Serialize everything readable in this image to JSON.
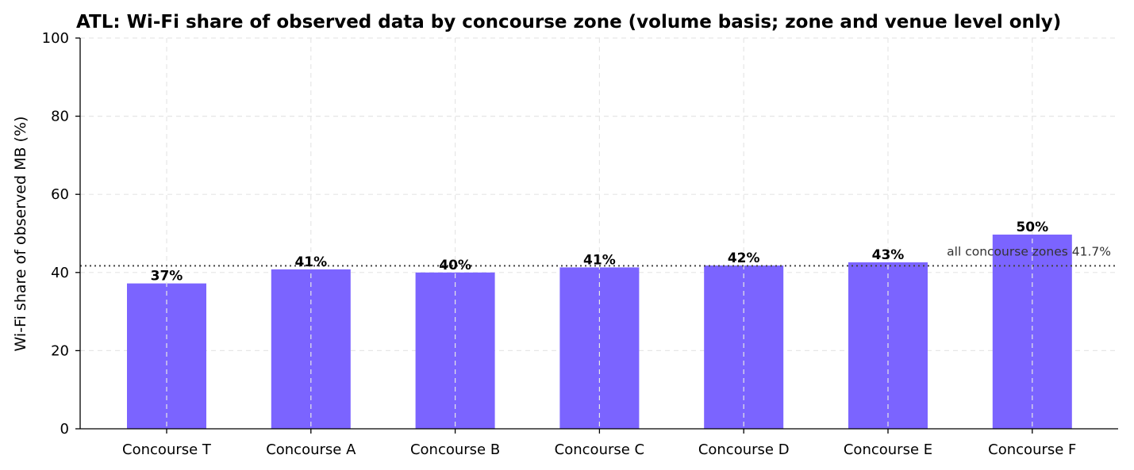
{
  "chart_data": {
    "type": "bar",
    "title": "ATL: Wi-Fi share of observed data by concourse zone (volume basis; zone and venue level only)",
    "xlabel": "",
    "ylabel": "Wi-Fi share of observed MB (%)",
    "ylim": [
      0,
      100
    ],
    "yticks": [
      0,
      20,
      40,
      60,
      80,
      100
    ],
    "grid": true,
    "categories": [
      "Concourse T",
      "Concourse A",
      "Concourse B",
      "Concourse C",
      "Concourse D",
      "Concourse E",
      "Concourse F"
    ],
    "values": [
      37.2,
      40.8,
      40.0,
      41.3,
      41.8,
      42.6,
      49.7
    ],
    "data_labels": [
      "37%",
      "41%",
      "40%",
      "41%",
      "42%",
      "43%",
      "50%"
    ],
    "bar_color": "#7b64ff",
    "reference_line": {
      "value": 41.7,
      "label": "all concourse zones 41.7%",
      "color": "#444444"
    }
  }
}
